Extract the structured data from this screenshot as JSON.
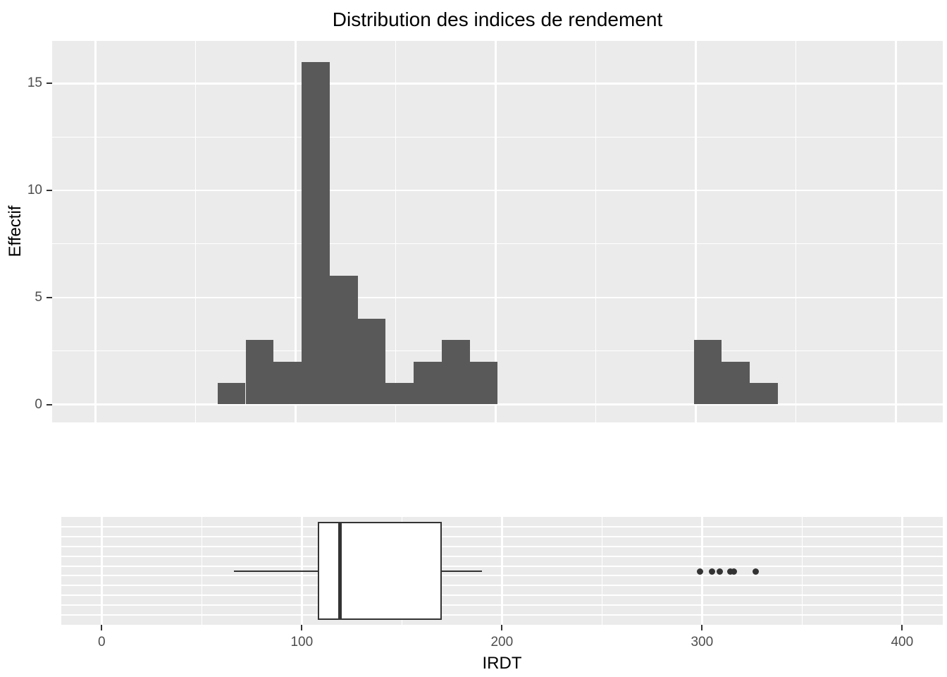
{
  "title": "Distribution des indices de rendement",
  "colors": {
    "background": "#FFFFFF",
    "panel": "#EBEBEB",
    "grid": "#FFFFFF",
    "bar_fill": "#595959",
    "box_line": "#333333",
    "box_fill": "#FFFFFF",
    "outlier": "#333333",
    "tick_mark": "#333333",
    "tick_label": "#4D4D4D",
    "text": "#000000"
  },
  "axes": {
    "x_title": "IRDT",
    "y_title": "Effectif",
    "x_tick_labels": [
      "0",
      "100",
      "200",
      "300",
      "400"
    ],
    "y_tick_labels": [
      "0",
      "5",
      "10",
      "15"
    ]
  },
  "chart_data": [
    {
      "type": "bar",
      "subtype": "histogram",
      "title": "Distribution des indices de rendement",
      "xlabel": "IRDT",
      "ylabel": "Effectif",
      "x_ticks": [
        0,
        100,
        200,
        300,
        400
      ],
      "y_ticks": [
        0,
        5,
        10,
        15
      ],
      "x_minor_ticks": [
        50,
        150,
        250,
        350
      ],
      "y_minor_ticks": [
        2.5,
        7.5,
        12.5
      ],
      "xlim": [
        -22,
        423
      ],
      "ylim": [
        -0.8,
        17
      ],
      "grid": true,
      "legend": false,
      "bins": [
        {
          "x0": 61,
          "x1": 75,
          "count": 1
        },
        {
          "x0": 75,
          "x1": 89,
          "count": 3
        },
        {
          "x0": 89,
          "x1": 103,
          "count": 2
        },
        {
          "x0": 103,
          "x1": 117,
          "count": 16
        },
        {
          "x0": 117,
          "x1": 131,
          "count": 6
        },
        {
          "x0": 131,
          "x1": 145,
          "count": 4
        },
        {
          "x0": 145,
          "x1": 159,
          "count": 1
        },
        {
          "x0": 159,
          "x1": 173,
          "count": 2
        },
        {
          "x0": 173,
          "x1": 187,
          "count": 3
        },
        {
          "x0": 187,
          "x1": 201,
          "count": 2
        },
        {
          "x0": 299,
          "x1": 313,
          "count": 3
        },
        {
          "x0": 313,
          "x1": 327,
          "count": 2
        },
        {
          "x0": 327,
          "x1": 341,
          "count": 1
        }
      ]
    },
    {
      "type": "boxplot",
      "orientation": "horizontal",
      "xlabel": "IRDT",
      "x_ticks": [
        0,
        100,
        200,
        300,
        400
      ],
      "x_minor_ticks": [
        50,
        150,
        250,
        350
      ],
      "xlim": [
        -20,
        420
      ],
      "stats": {
        "whisker_low": 66,
        "q1": 108,
        "median": 119,
        "q3": 170,
        "whisker_high": 190
      },
      "outliers": [
        299,
        305,
        309,
        314,
        316,
        327
      ]
    }
  ]
}
